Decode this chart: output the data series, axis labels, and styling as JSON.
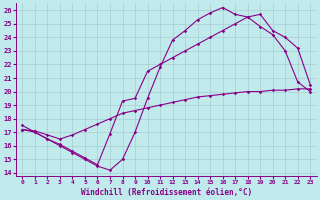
{
  "xlabel": "Windchill (Refroidissement éolien,°C)",
  "bg_color": "#c0eaec",
  "line_color": "#880088",
  "grid_color": "#a8ccd0",
  "xlim": [
    -0.5,
    23.5
  ],
  "ylim": [
    13.8,
    26.5
  ],
  "xticks": [
    0,
    1,
    2,
    3,
    4,
    5,
    6,
    7,
    8,
    9,
    10,
    11,
    12,
    13,
    14,
    15,
    16,
    17,
    18,
    19,
    20,
    21,
    22,
    23
  ],
  "yticks": [
    14,
    15,
    16,
    17,
    18,
    19,
    20,
    21,
    22,
    23,
    24,
    25,
    26
  ],
  "line1_x": [
    0,
    1,
    2,
    3,
    4,
    5,
    6,
    7,
    8,
    9,
    10,
    11,
    12,
    13,
    14,
    15,
    16,
    17,
    18,
    19,
    20,
    21,
    22,
    23
  ],
  "line1_y": [
    17.2,
    17.1,
    16.8,
    16.5,
    16.8,
    17.2,
    17.6,
    18.0,
    18.4,
    18.6,
    18.8,
    19.0,
    19.2,
    19.4,
    19.6,
    19.7,
    19.8,
    19.9,
    20.0,
    20.0,
    20.1,
    20.1,
    20.2,
    20.2
  ],
  "line2_x": [
    0,
    1,
    2,
    3,
    4,
    5,
    6,
    7,
    8,
    9,
    10,
    11,
    12,
    13,
    14,
    15,
    16,
    17,
    18,
    19,
    20,
    21,
    22,
    23
  ],
  "line2_y": [
    17.2,
    17.0,
    16.5,
    16.0,
    15.5,
    15.0,
    14.5,
    14.2,
    15.0,
    17.0,
    19.5,
    21.8,
    23.8,
    24.5,
    25.3,
    25.8,
    26.2,
    25.7,
    25.5,
    24.8,
    24.2,
    23.0,
    20.7,
    20.0
  ],
  "line3_x": [
    0,
    1,
    2,
    3,
    4,
    5,
    6,
    7,
    8,
    9,
    10,
    11,
    12,
    13,
    14,
    15,
    16,
    17,
    18,
    19,
    20,
    21,
    22,
    23
  ],
  "line3_y": [
    17.5,
    17.0,
    16.5,
    16.1,
    15.6,
    15.1,
    14.6,
    16.9,
    19.3,
    19.5,
    21.5,
    22.0,
    22.5,
    23.0,
    23.5,
    24.0,
    24.5,
    25.0,
    25.5,
    25.7,
    24.5,
    24.0,
    23.2,
    20.5
  ]
}
